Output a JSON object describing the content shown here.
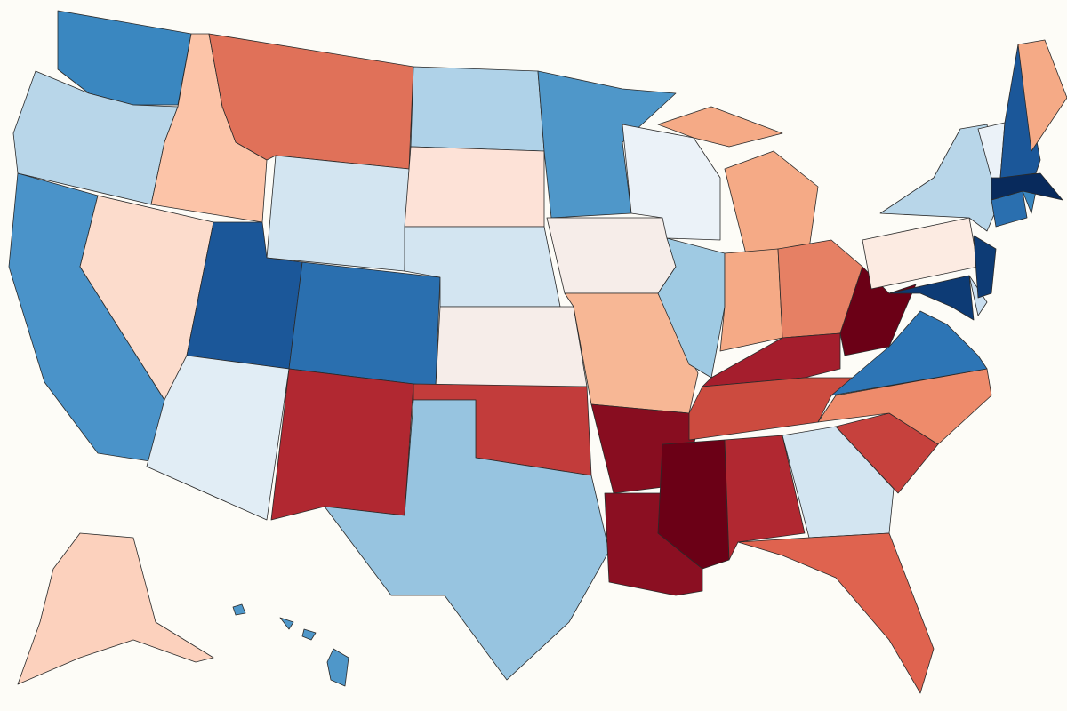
{
  "map": {
    "regions": [
      {
        "color": "#3a87c0"
      },
      {
        "color": "#b8d6e9"
      },
      {
        "color": "#4a93c9"
      },
      {
        "color": "#fcdccc"
      },
      {
        "color": "#fcc4a8"
      },
      {
        "color": "#e07159"
      },
      {
        "color": "#d3e5f1"
      },
      {
        "color": "#1b5799"
      },
      {
        "color": "#2a6faf"
      },
      {
        "color": "#e1edf5"
      },
      {
        "color": "#b12831"
      },
      {
        "color": "#afd2e8"
      },
      {
        "color": "#fde2d7"
      },
      {
        "color": "#d3e5f1"
      },
      {
        "color": "#f6ede9"
      },
      {
        "color": "#c23c3b"
      },
      {
        "color": "#97c4e0"
      },
      {
        "color": "#4f97c9"
      },
      {
        "color": "#f6ede9"
      },
      {
        "color": "#f7b795"
      },
      {
        "color": "#880d20"
      },
      {
        "color": "#8b0f22"
      },
      {
        "color": "#ebf2f8"
      },
      {
        "color": "#9fcae3"
      },
      {
        "color": "#f5aa86"
      },
      {
        "color": "#f5aa86"
      },
      {
        "color": "#f5aa86"
      },
      {
        "color": "#e68064"
      },
      {
        "color": "#a51e2d"
      },
      {
        "color": "#cc4b3f"
      },
      {
        "color": "#6b0016"
      },
      {
        "color": "#b12831"
      },
      {
        "color": "#d3e5f1"
      },
      {
        "color": "#df634f"
      },
      {
        "color": "#c6413d"
      },
      {
        "color": "#ee8b6b"
      },
      {
        "color": "#2d75b5"
      },
      {
        "color": "#6b0016"
      },
      {
        "color": "#fcebe2"
      },
      {
        "color": "#b8d6e9"
      },
      {
        "color": "#0d3b75"
      },
      {
        "color": "#cadff0"
      },
      {
        "color": "#0d3b75"
      },
      {
        "color": "#2a6faf"
      },
      {
        "color": "#3a87c0"
      },
      {
        "color": "#082a5c"
      },
      {
        "color": "#ebf2f8"
      },
      {
        "color": "#1b5799"
      },
      {
        "color": "#f5aa86"
      },
      {
        "color": "#fcd1bd"
      },
      {
        "color": "#4f97c9"
      }
    ]
  }
}
